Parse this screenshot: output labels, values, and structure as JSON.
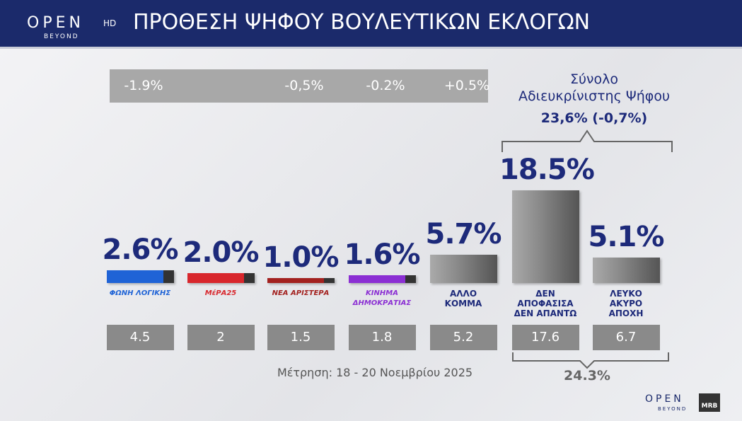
{
  "branding": {
    "channel": "OPEN",
    "hd": "HD",
    "beyond": "BEYOND",
    "footer_channel": "OPEN",
    "footer_beyond": "BEYOND",
    "pollster": "MRB"
  },
  "chart_data": {
    "type": "bar",
    "title": "ΠΡΟΘΕΣΗ ΨΗΦΟΥ ΒΟΥΛΕΥΤΙΚΩΝ ΕΚΛΟΓΩΝ",
    "categories": [
      "ΦΩΝΗ ΛΟΓΙΚΗΣ",
      "ΜέΡΑ25",
      "ΝΕΑ ΑΡΙΣΤΕΡΑ",
      "ΚΙΝΗΜΑ ΔΗΜΟΚΡΑΤΙΑΣ",
      "ΑΛΛΟ\nΚΟΜΜΑ",
      "ΔΕΝ ΑΠΟΦΑΣΙΣΑ\nΔΕΝ ΑΠΑΝΤΩ",
      "ΛΕΥΚΟ\nΑΚΥΡΟ\nΑΠΟΧΗ"
    ],
    "values": [
      2.6,
      2.0,
      1.0,
      1.6,
      5.7,
      18.5,
      5.1
    ],
    "value_labels": [
      "2.6%",
      "2.0%",
      "1.0%",
      "1.6%",
      "5.7%",
      "18.5%",
      "5.1%"
    ],
    "colors": [
      "#1f63d6",
      "#d8262c",
      "#a3211f",
      "#8b2fd3",
      "#8a8a8a",
      "#8a8a8a",
      "#8a8a8a"
    ],
    "previous_values": [
      4.5,
      2,
      1.5,
      1.8,
      5.2,
      17.6,
      6.7
    ],
    "change_labels": [
      "-1.9%",
      null,
      "-0,5%",
      "-0.2%",
      "+0.5%",
      null,
      null
    ],
    "annotations": {
      "undecided_title": "Σύνολο\nΑδιευκρίνιστης Ψήφου",
      "undecided_total": "23,6% (-0,7%)",
      "previous_total": "24.3%"
    },
    "footnote": "Μέτρηση: 18 - 20 Νοεμβρίου 2025"
  }
}
